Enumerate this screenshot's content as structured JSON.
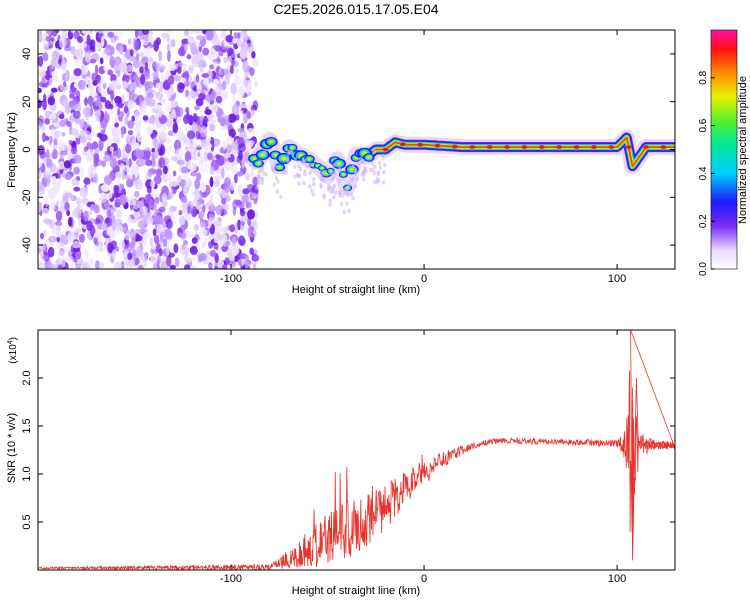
{
  "page": {
    "title": "C2E5.2026.015.17.05.E04"
  },
  "chart_data": [
    {
      "type": "heatmap",
      "title": "C2E5.2026.015.17.05.E04",
      "xlabel": "Height of straight line (km)",
      "ylabel": "Frequency (Hz)",
      "xlim": [
        -200,
        130
      ],
      "ylim": [
        -50,
        50
      ],
      "xticks": [
        -100,
        0,
        100
      ],
      "yticks": [
        -40,
        -20,
        0,
        20,
        40
      ],
      "noise_region_x": [
        -200,
        -87
      ],
      "signal_track": {
        "description_points": [
          {
            "x": -90,
            "y": -3
          },
          {
            "x": -86,
            "y": -5
          },
          {
            "x": -80,
            "y": 4
          },
          {
            "x": -75,
            "y": -7
          },
          {
            "x": -70,
            "y": 1
          },
          {
            "x": -65,
            "y": -2
          },
          {
            "x": -60,
            "y": -4
          },
          {
            "x": -55,
            "y": -7
          },
          {
            "x": -50,
            "y": -11
          },
          {
            "x": -45,
            "y": -4
          },
          {
            "x": -40,
            "y": -16
          },
          {
            "x": -35,
            "y": -2
          },
          {
            "x": -30,
            "y": -3
          },
          {
            "x": -25,
            "y": 0
          },
          {
            "x": -20,
            "y": 0
          },
          {
            "x": -15,
            "y": 3
          },
          {
            "x": -10,
            "y": 2
          },
          {
            "x": 0,
            "y": 2
          },
          {
            "x": 20,
            "y": 1
          },
          {
            "x": 50,
            "y": 1
          },
          {
            "x": 90,
            "y": 1
          },
          {
            "x": 100,
            "y": 1
          },
          {
            "x": 105,
            "y": 5
          },
          {
            "x": 108,
            "y": -7
          },
          {
            "x": 115,
            "y": 1
          },
          {
            "x": 130,
            "y": 1
          }
        ]
      },
      "colorbar": {
        "label": "Normalized spectral amplitude",
        "ticks": [
          "0.0",
          "0.2",
          "0.4",
          "0.6",
          "0.8"
        ],
        "range": [
          0,
          1
        ]
      }
    },
    {
      "type": "line",
      "xlabel": "Height of straight line (km)",
      "ylabel": "SNR (10 * v/v)",
      "multiplier": "(x10",
      "multiplier_exp": "4",
      "multiplier_close": ")",
      "xlim": [
        -200,
        130
      ],
      "ylim": [
        0,
        2.5
      ],
      "xticks": [
        -100,
        0,
        100
      ],
      "yticks": [
        "0.5",
        "1.0",
        "1.5",
        "2.0"
      ],
      "color": "#e8322b",
      "envelope": {
        "x": [
          -200,
          -80,
          -70,
          -60,
          -50,
          -40,
          -30,
          -20,
          -10,
          0,
          10,
          20,
          30,
          40,
          60,
          80,
          100,
          104,
          106,
          107,
          108,
          109,
          110,
          112,
          120,
          130
        ],
        "base": [
          0.02,
          0.03,
          0.1,
          0.2,
          0.3,
          0.4,
          0.5,
          0.65,
          0.85,
          1.0,
          1.15,
          1.25,
          1.32,
          1.35,
          1.34,
          1.33,
          1.32,
          1.3,
          1.3,
          1.3,
          1.3,
          1.3,
          1.3,
          1.3,
          1.3,
          1.3
        ],
        "amp": [
          0.01,
          0.03,
          0.1,
          0.2,
          0.3,
          0.32,
          0.3,
          0.25,
          0.2,
          0.12,
          0.08,
          0.05,
          0.03,
          0.03,
          0.03,
          0.03,
          0.04,
          0.15,
          0.5,
          1.2,
          1.2,
          0.8,
          0.4,
          0.15,
          0.05,
          0.04
        ]
      },
      "notable_points": [
        {
          "x": 107,
          "y": 2.5
        },
        {
          "x": 108,
          "y": 0.1
        },
        {
          "x": 110,
          "y": 2.0
        }
      ]
    }
  ]
}
